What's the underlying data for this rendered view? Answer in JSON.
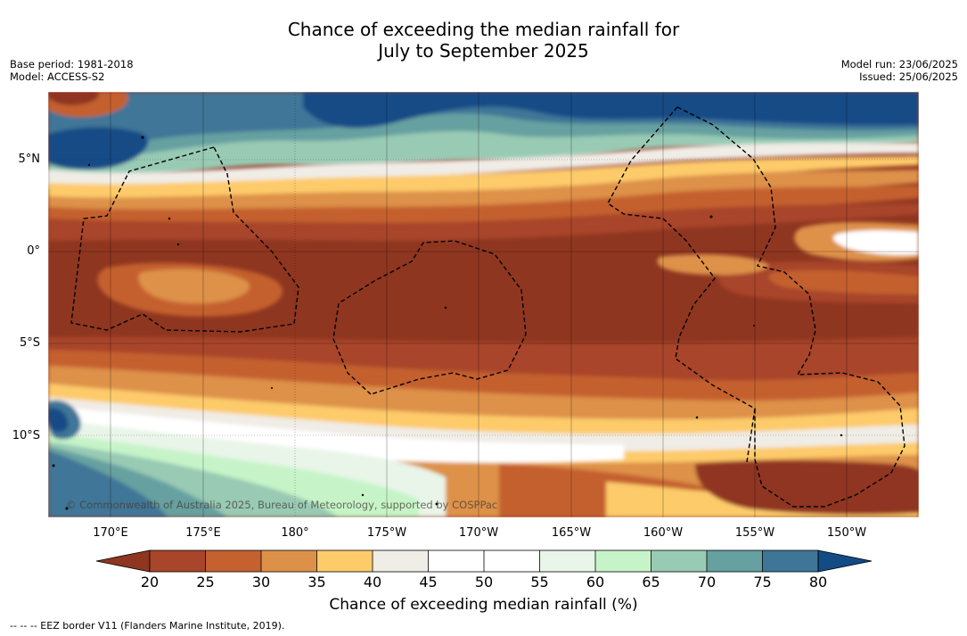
{
  "title": {
    "line1": "Chance of exceeding the median rainfall for",
    "line2": "July to September 2025"
  },
  "meta_left": {
    "base_period": "Base period: 1981-2018",
    "model": "Model: ACCESS-S2"
  },
  "meta_right": {
    "model_run": "Model run: 23/06/2025",
    "issued": "Issued: 25/06/2025"
  },
  "map": {
    "lat_labels": [
      "5°N",
      "0°",
      "5°S",
      "10°S"
    ],
    "lon_labels": [
      "170°E",
      "175°E",
      "180°",
      "175°W",
      "170°W",
      "165°W",
      "160°W",
      "155°W",
      "150°W"
    ],
    "copyright": "© Commonwealth of Australia 2025, Bureau of Meteorology, supported by COSPPac"
  },
  "colorbar": {
    "ticks": [
      "20",
      "25",
      "30",
      "35",
      "40",
      "45",
      "50",
      "55",
      "60",
      "65",
      "70",
      "75",
      "80"
    ],
    "colors": {
      "below20": "#8f3620",
      "20-25": "#a8452a",
      "25-30": "#c4612f",
      "30-35": "#dd9148",
      "35-40": "#fdcb6a",
      "40-45": "#f0ece6",
      "45-50": "#ffffff",
      "50-55": "#ffffff",
      "55-60": "#e8f5e8",
      "60-65": "#c6f4c8",
      "65-70": "#98cab4",
      "70-75": "#66a0a0",
      "75-80": "#3f7697",
      "above80": "#134b86"
    },
    "title": "Chance of exceeding median rainfall (%)"
  },
  "footnote": "-- -- -- EEZ border V11 (Flanders Marine Institute, 2019)."
}
